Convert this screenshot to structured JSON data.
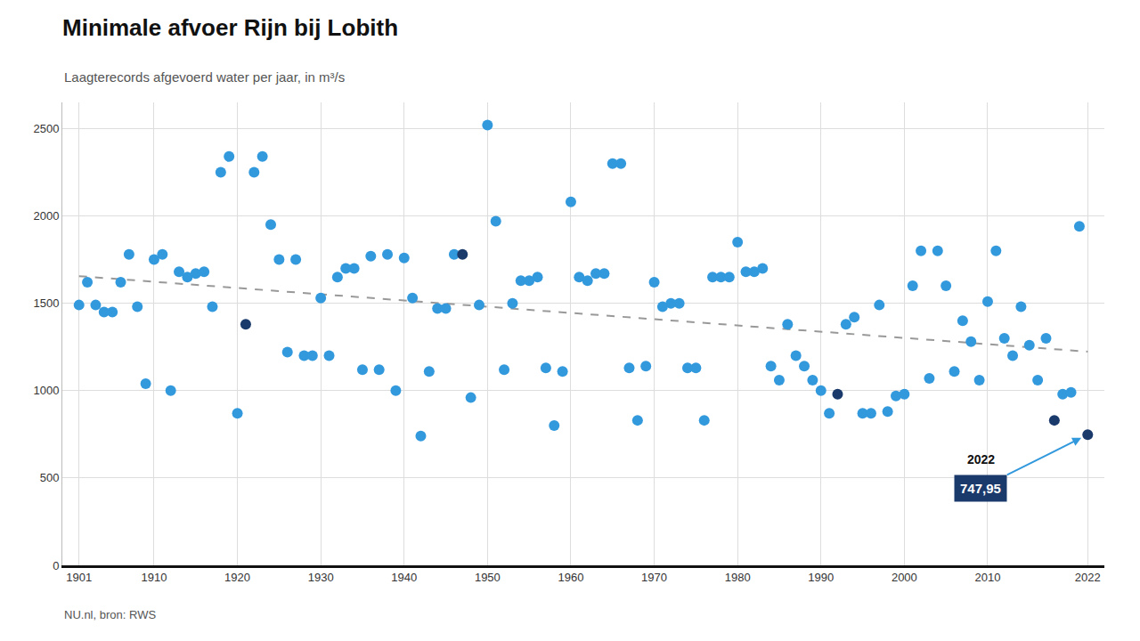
{
  "chart_data": {
    "type": "scatter",
    "title": "Minimale afvoer Rijn bij Lobith",
    "subtitle": "Laagterecords afgevoerd water per jaar, in m³/s",
    "source": "NU.nl, bron: RWS",
    "series": [
      {
        "type": "line",
        "color": "#999999",
        "line_style": "dashed",
        "x": [
          1901,
          2022
        ],
        "values": [
          1655.43,
          1223.06
        ]
      },
      {
        "type": "scatter",
        "x": [
          1901,
          1902,
          1903,
          1904,
          1905,
          1906,
          1907,
          1908,
          1909,
          1910,
          1911,
          1912,
          1913,
          1914,
          1915,
          1916,
          1917,
          1918,
          1919,
          1920,
          1921,
          1922,
          1923,
          1924,
          1925,
          1926,
          1927,
          1928,
          1929,
          1930,
          1931,
          1932,
          1933,
          1934,
          1935,
          1936,
          1937,
          1938,
          1939,
          1940,
          1941,
          1942,
          1943,
          1944,
          1945,
          1946,
          1947,
          1948,
          1949,
          1950,
          1951,
          1952,
          1953,
          1954,
          1955,
          1956,
          1957,
          1958,
          1959,
          1960,
          1961,
          1962,
          1963,
          1964,
          1965,
          1966,
          1967,
          1968,
          1969,
          1970,
          1971,
          1972,
          1973,
          1974,
          1975,
          1976,
          1977,
          1978,
          1979,
          1980,
          1981,
          1982,
          1983,
          1984,
          1985,
          1986,
          1987,
          1988,
          1989,
          1990,
          1991,
          1992,
          1993,
          1994,
          1995,
          1996,
          1997,
          1998,
          1999,
          2000,
          2001,
          2002,
          2003,
          2004,
          2005,
          2006,
          2007,
          2008,
          2009,
          2010,
          2011,
          2012,
          2013,
          2014,
          2015,
          2016,
          2017,
          2018,
          2019,
          2020,
          2021,
          2022
        ],
        "values": [
          1490,
          1620,
          1490,
          1450,
          1450,
          1620,
          1780,
          1480,
          1040,
          1750,
          1780,
          1000,
          1680,
          1650,
          1670,
          1680,
          1480,
          2250,
          2340,
          870,
          1380,
          2250,
          2340,
          1950,
          1750,
          1220,
          1750,
          1200,
          1200,
          1530,
          1200,
          1650,
          1700,
          1700,
          1120,
          1770,
          1120,
          1780,
          1000,
          1760,
          1530,
          740,
          1110,
          1470,
          1470,
          1780,
          1780,
          960,
          1490,
          2520,
          1970,
          1120,
          1500,
          1630,
          1630,
          1650,
          1130,
          800,
          1110,
          2080,
          1650,
          1630,
          1670,
          1670,
          2300,
          2300,
          1130,
          830,
          1140,
          1620,
          1480,
          1500,
          1500,
          1130,
          1130,
          830,
          1650,
          1650,
          1650,
          1850,
          1680,
          1680,
          1700,
          1140,
          1060,
          1380,
          1200,
          1140,
          1060,
          1000,
          870,
          980,
          1380,
          1420,
          870,
          870,
          1490,
          880,
          970,
          980,
          1600,
          1800,
          1070,
          1800,
          1600,
          1110,
          1400,
          1280,
          1060,
          1510,
          1800,
          1300,
          1200,
          1480,
          1260,
          1060,
          1300,
          830,
          980,
          990,
          1940,
          748
        ],
        "colors": [
          "#3399DD",
          "#3399DD",
          "#3399DD",
          "#3399DD",
          "#3399DD",
          "#3399DD",
          "#3399DD",
          "#3399DD",
          "#3399DD",
          "#3399DD",
          "#3399DD",
          "#3399DD",
          "#3399DD",
          "#3399DD",
          "#3399DD",
          "#3399DD",
          "#3399DD",
          "#3399DD",
          "#3399DD",
          "#3399DD",
          "#1a3a6b",
          "#3399DD",
          "#3399DD",
          "#3399DD",
          "#3399DD",
          "#3399DD",
          "#3399DD",
          "#3399DD",
          "#3399DD",
          "#3399DD",
          "#3399DD",
          "#3399DD",
          "#3399DD",
          "#3399DD",
          "#3399DD",
          "#3399DD",
          "#3399DD",
          "#3399DD",
          "#3399DD",
          "#3399DD",
          "#3399DD",
          "#3399DD",
          "#3399DD",
          "#3399DD",
          "#3399DD",
          "#3399DD",
          "#1a3a6b",
          "#3399DD",
          "#3399DD",
          "#3399DD",
          "#3399DD",
          "#3399DD",
          "#3399DD",
          "#3399DD",
          "#3399DD",
          "#3399DD",
          "#3399DD",
          "#3399DD",
          "#3399DD",
          "#3399DD",
          "#3399DD",
          "#3399DD",
          "#3399DD",
          "#3399DD",
          "#3399DD",
          "#3399DD",
          "#3399DD",
          "#3399DD",
          "#3399DD",
          "#3399DD",
          "#3399DD",
          "#3399DD",
          "#3399DD",
          "#3399DD",
          "#3399DD",
          "#3399DD",
          "#3399DD",
          "#3399DD",
          "#3399DD",
          "#3399DD",
          "#3399DD",
          "#3399DD",
          "#3399DD",
          "#3399DD",
          "#3399DD",
          "#3399DD",
          "#3399DD",
          "#3399DD",
          "#3399DD",
          "#3399DD",
          "#3399DD",
          "#1a3a6b",
          "#3399DD",
          "#3399DD",
          "#3399DD",
          "#3399DD",
          "#3399DD",
          "#3399DD",
          "#3399DD",
          "#3399DD",
          "#3399DD",
          "#3399DD",
          "#3399DD",
          "#3399DD",
          "#3399DD",
          "#3399DD",
          "#3399DD",
          "#3399DD",
          "#3399DD",
          "#3399DD",
          "#3399DD",
          "#3399DD",
          "#3399DD",
          "#3399DD",
          "#3399DD",
          "#3399DD",
          "#3399DD",
          "#1a3a6b",
          "#3399DD",
          "#3399DD",
          "#3399DD",
          "#1a3a6b"
        ]
      }
    ],
    "annotations": [
      {
        "label": "2022",
        "text": "747,95",
        "x": 2022,
        "y": 747.95
      }
    ],
    "xlim": [
      1899,
      2024
    ],
    "ylim": [
      0,
      2650
    ],
    "xticks": [
      1901,
      1910,
      1920,
      1930,
      1940,
      1950,
      1960,
      1970,
      1980,
      1990,
      2000,
      2010,
      2022
    ],
    "yticks": [
      0,
      500,
      1000,
      1500,
      2000,
      2500
    ],
    "grid": true
  }
}
